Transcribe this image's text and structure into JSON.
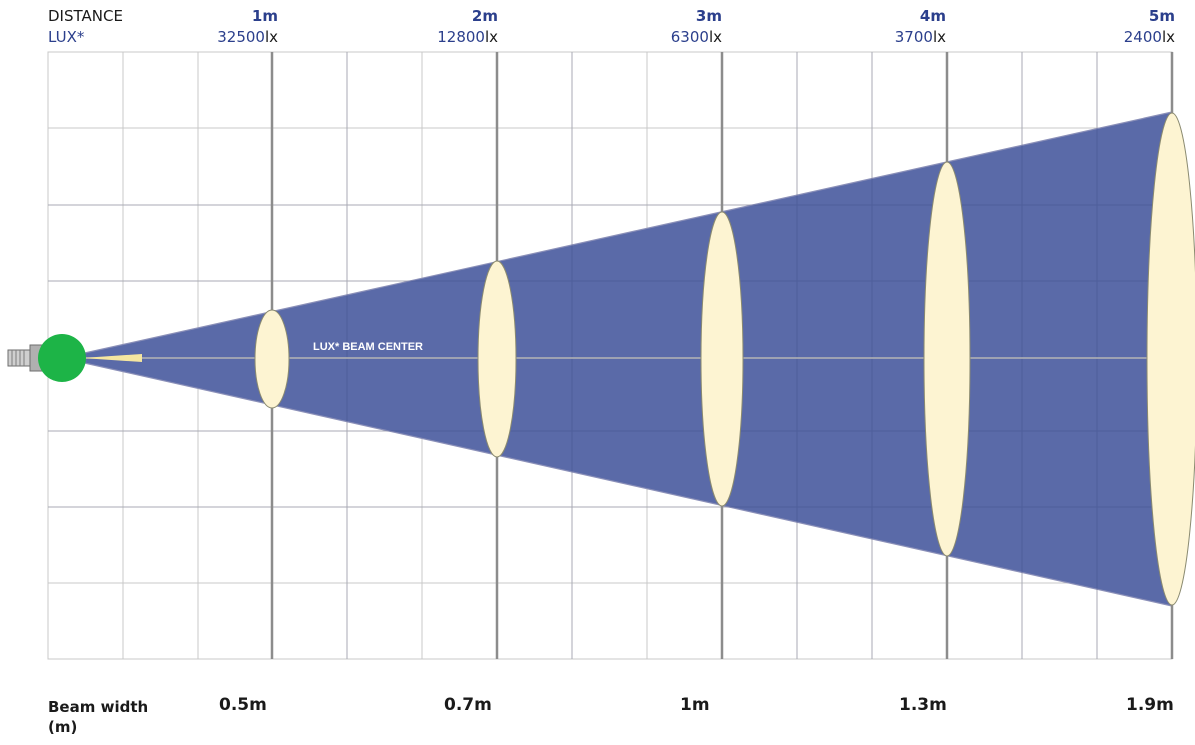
{
  "header": {
    "distance_label": "DISTANCE",
    "lux_label": "LUX*"
  },
  "beam_center_label": "LUX* BEAM CENTER",
  "beam_width_label_line1": "Beam width",
  "beam_width_label_line2": "(m)",
  "colors": {
    "beam": "#5a6aa8",
    "spot": "#fdf4d2",
    "lamp": "#1db447",
    "grid": "#c8c8c8",
    "major_grid": "#8c8c8c",
    "header_blue": "#2b3f8c"
  },
  "stations": [
    {
      "distance": "1m",
      "lux_value": "32500",
      "lux_unit": "lx",
      "beam_width": "0.5m"
    },
    {
      "distance": "2m",
      "lux_value": "12800",
      "lux_unit": "lx",
      "beam_width": "0.7m"
    },
    {
      "distance": "3m",
      "lux_value": "6300",
      "lux_unit": "lx",
      "beam_width": "1m"
    },
    {
      "distance": "4m",
      "lux_value": "3700",
      "lux_unit": "lx",
      "beam_width": "1.3m"
    },
    {
      "distance": "5m",
      "lux_value": "2400",
      "lux_unit": "lx",
      "beam_width": "1.9m"
    }
  ]
}
